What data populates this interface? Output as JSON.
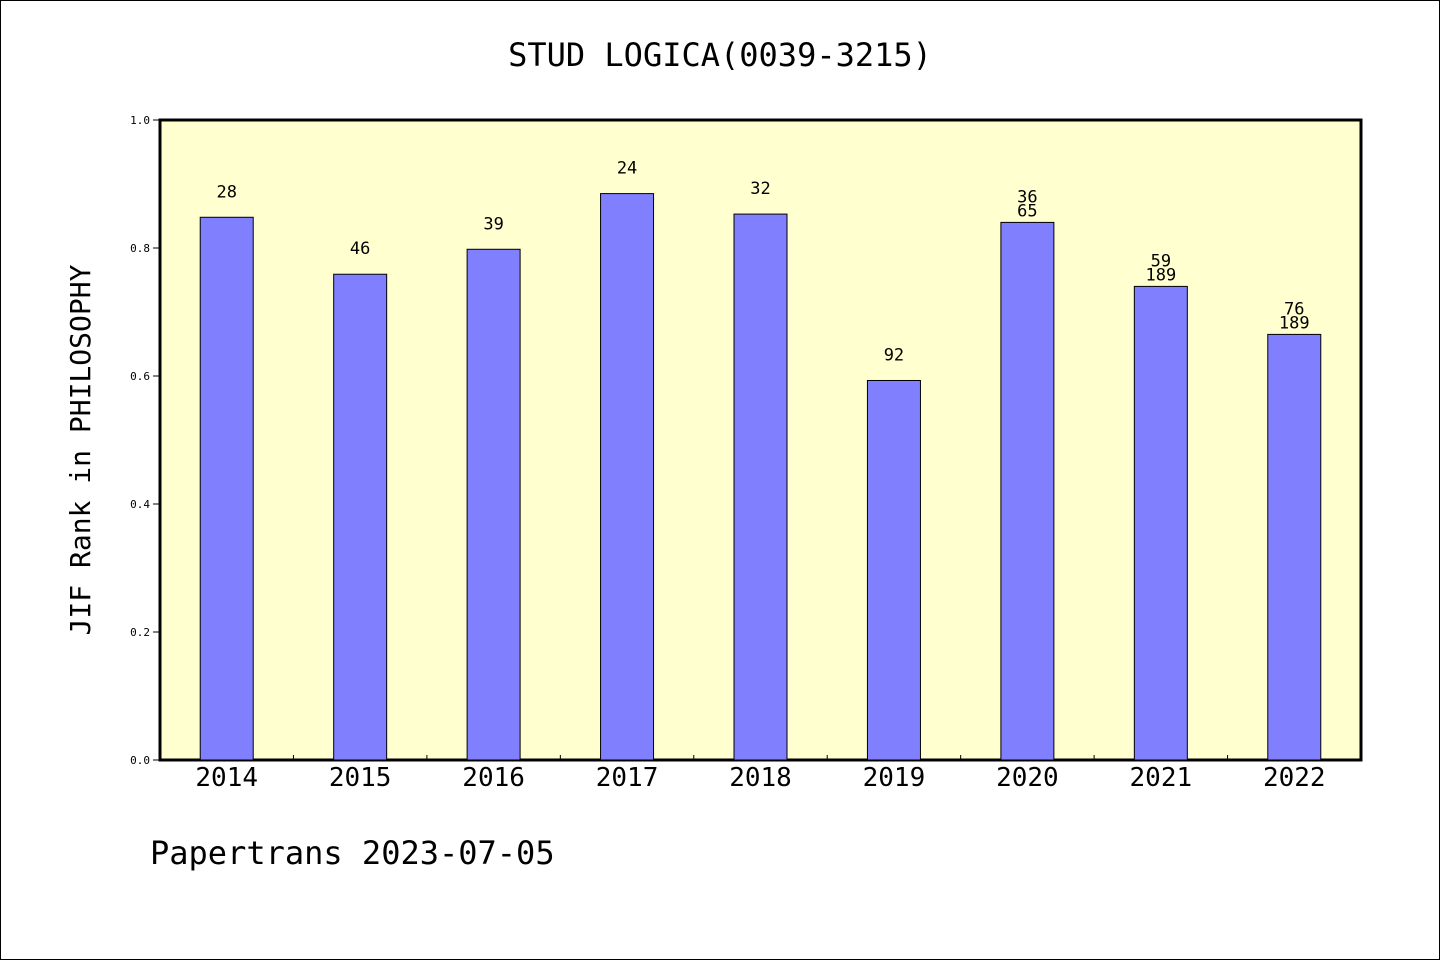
{
  "chart_data": {
    "type": "bar",
    "title": "STUD LOGICA(0039-3215)",
    "ylabel": "JIF Rank in PHILOSOPHY",
    "xlabel": "",
    "footer": "Papertrans 2023-07-05",
    "ylim": [
      0,
      1.0
    ],
    "yticks": [
      "0.0",
      "0.2",
      "0.4",
      "0.6",
      "0.8",
      "1.0"
    ],
    "categories": [
      "2014",
      "2015",
      "2016",
      "2017",
      "2018",
      "2019",
      "2020",
      "2021",
      "2022"
    ],
    "values": [
      0.848,
      0.759,
      0.798,
      0.885,
      0.853,
      0.593,
      0.84,
      0.74,
      0.665
    ],
    "bar_labels": [
      [
        "28"
      ],
      [
        "46"
      ],
      [
        "39"
      ],
      [
        "24"
      ],
      [
        "32"
      ],
      [
        "92"
      ],
      [
        "36",
        "65"
      ],
      [
        "59",
        "189"
      ],
      [
        "76",
        "189"
      ]
    ],
    "colors": {
      "plot_background": "#ffffd0",
      "bar_fill": "#8080ff",
      "bar_stroke": "#000000"
    }
  }
}
